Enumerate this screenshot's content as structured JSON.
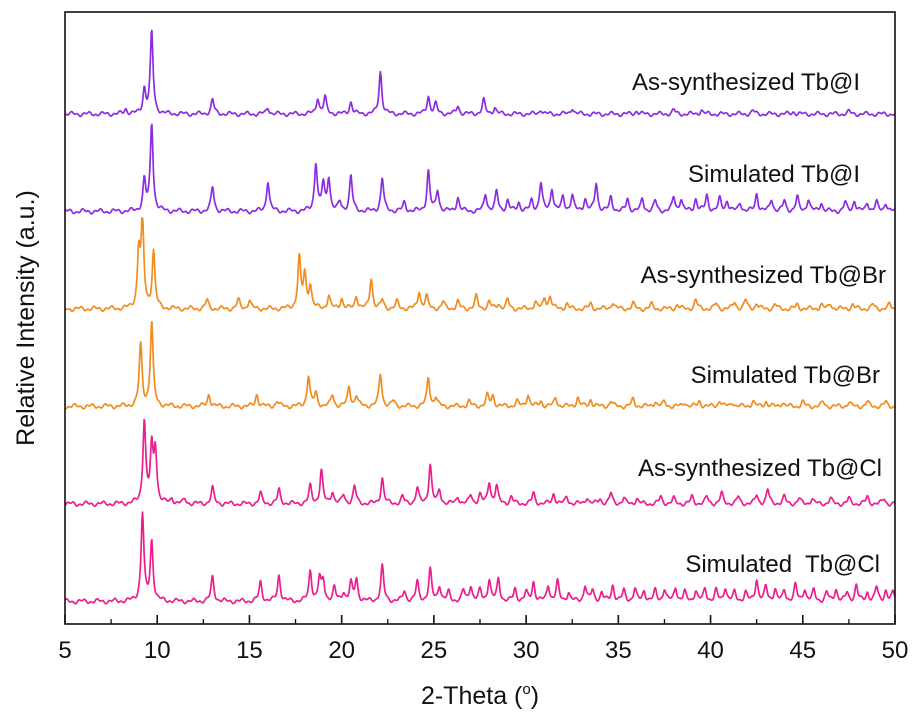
{
  "chart_data": {
    "type": "line",
    "title": "",
    "xlabel": "2-Theta",
    "xlabel_unit": "o",
    "ylabel": "Relative Intensity (a.u.)",
    "xlim": [
      5,
      50
    ],
    "x_ticks": [
      "5",
      "10",
      "15",
      "20",
      "25",
      "30",
      "35",
      "40",
      "45",
      "50"
    ],
    "y_ticks": "none",
    "grid": false,
    "legend": "inline labels",
    "colors": {
      "iodide": "#8B2BE2",
      "bromide": "#F28C1E",
      "chloride": "#EC1E8E",
      "axis": "#111111"
    },
    "series": [
      {
        "name": "As-synthesized Tb@I",
        "color": "iodide",
        "offset": 5,
        "scale": 0.82,
        "peaks": [
          [
            8.3,
            0.06
          ],
          [
            9.3,
            0.3
          ],
          [
            9.7,
            1.0
          ],
          [
            13.0,
            0.18
          ],
          [
            16.0,
            0.08
          ],
          [
            18.7,
            0.2
          ],
          [
            19.1,
            0.2
          ],
          [
            20.5,
            0.15
          ],
          [
            22.1,
            0.52
          ],
          [
            24.7,
            0.22
          ],
          [
            25.1,
            0.12
          ],
          [
            26.3,
            0.1
          ],
          [
            27.7,
            0.17
          ],
          [
            28.3,
            0.08
          ],
          [
            30.8,
            0.06
          ],
          [
            32.5,
            0.08
          ],
          [
            36.0,
            0.04
          ],
          [
            38.0,
            0.05
          ],
          [
            39.5,
            0.05
          ],
          [
            42.3,
            0.04
          ],
          [
            44.5,
            0.03
          ],
          [
            47.5,
            0.03
          ]
        ]
      },
      {
        "name": "Simulated Tb@I",
        "color": "iodide",
        "offset": 4,
        "scale": 0.88,
        "peaks": [
          [
            9.3,
            0.35
          ],
          [
            9.7,
            1.0
          ],
          [
            13.0,
            0.28
          ],
          [
            16.0,
            0.35
          ],
          [
            18.6,
            0.55
          ],
          [
            19.0,
            0.3
          ],
          [
            19.3,
            0.38
          ],
          [
            19.9,
            0.1
          ],
          [
            20.5,
            0.4
          ],
          [
            22.2,
            0.38
          ],
          [
            23.4,
            0.1
          ],
          [
            24.7,
            0.46
          ],
          [
            25.2,
            0.24
          ],
          [
            26.3,
            0.16
          ],
          [
            27.8,
            0.2
          ],
          [
            28.4,
            0.22
          ],
          [
            29.0,
            0.12
          ],
          [
            29.6,
            0.1
          ],
          [
            30.3,
            0.12
          ],
          [
            30.8,
            0.32
          ],
          [
            31.4,
            0.26
          ],
          [
            32.0,
            0.16
          ],
          [
            32.5,
            0.18
          ],
          [
            33.2,
            0.14
          ],
          [
            33.8,
            0.32
          ],
          [
            34.6,
            0.16
          ],
          [
            35.5,
            0.14
          ],
          [
            36.3,
            0.14
          ],
          [
            37.0,
            0.12
          ],
          [
            38.0,
            0.16
          ],
          [
            38.4,
            0.14
          ],
          [
            39.2,
            0.14
          ],
          [
            39.8,
            0.18
          ],
          [
            40.5,
            0.14
          ],
          [
            40.9,
            0.12
          ],
          [
            41.6,
            0.1
          ],
          [
            42.5,
            0.2
          ],
          [
            43.3,
            0.14
          ],
          [
            44.0,
            0.12
          ],
          [
            44.7,
            0.16
          ],
          [
            45.3,
            0.14
          ],
          [
            46.0,
            0.1
          ],
          [
            47.3,
            0.1
          ],
          [
            47.8,
            0.12
          ],
          [
            48.5,
            0.1
          ],
          [
            49.0,
            0.1
          ],
          [
            49.5,
            0.1
          ]
        ]
      },
      {
        "name": "As-synthesized Tb@Br",
        "color": "bromide",
        "offset": 3,
        "scale": 0.88,
        "peaks": [
          [
            9.0,
            0.62
          ],
          [
            9.2,
            0.95
          ],
          [
            9.8,
            0.65
          ],
          [
            12.7,
            0.1
          ],
          [
            14.4,
            0.1
          ],
          [
            15.0,
            0.1
          ],
          [
            17.7,
            0.58
          ],
          [
            18.0,
            0.38
          ],
          [
            18.3,
            0.26
          ],
          [
            19.3,
            0.15
          ],
          [
            20.0,
            0.12
          ],
          [
            20.8,
            0.15
          ],
          [
            21.6,
            0.35
          ],
          [
            22.2,
            0.1
          ],
          [
            23.0,
            0.08
          ],
          [
            24.2,
            0.2
          ],
          [
            24.6,
            0.14
          ],
          [
            25.5,
            0.08
          ],
          [
            26.3,
            0.08
          ],
          [
            27.3,
            0.14
          ],
          [
            28.0,
            0.08
          ],
          [
            28.5,
            0.06
          ],
          [
            29.0,
            0.1
          ],
          [
            30.5,
            0.08
          ],
          [
            31.0,
            0.12
          ],
          [
            31.3,
            0.14
          ],
          [
            32.2,
            0.06
          ],
          [
            33.5,
            0.06
          ],
          [
            34.7,
            0.08
          ],
          [
            35.8,
            0.06
          ],
          [
            36.8,
            0.05
          ],
          [
            38.2,
            0.05
          ],
          [
            39.2,
            0.1
          ],
          [
            40.3,
            0.06
          ],
          [
            41.3,
            0.08
          ],
          [
            41.9,
            0.1
          ],
          [
            42.5,
            0.06
          ],
          [
            43.5,
            0.05
          ],
          [
            44.7,
            0.05
          ],
          [
            46.0,
            0.05
          ],
          [
            46.5,
            0.06
          ],
          [
            47.7,
            0.05
          ],
          [
            48.8,
            0.05
          ],
          [
            49.7,
            0.05
          ]
        ]
      },
      {
        "name": "Simulated Tb@Br",
        "color": "bromide",
        "offset": 2,
        "scale": 0.88,
        "peaks": [
          [
            9.1,
            0.7
          ],
          [
            9.7,
            0.95
          ],
          [
            12.8,
            0.14
          ],
          [
            15.4,
            0.14
          ],
          [
            16.5,
            0.06
          ],
          [
            18.2,
            0.35
          ],
          [
            18.6,
            0.15
          ],
          [
            19.5,
            0.13
          ],
          [
            20.4,
            0.22
          ],
          [
            20.8,
            0.12
          ],
          [
            22.1,
            0.37
          ],
          [
            22.8,
            0.06
          ],
          [
            24.7,
            0.33
          ],
          [
            25.1,
            0.1
          ],
          [
            26.9,
            0.06
          ],
          [
            27.9,
            0.12
          ],
          [
            28.2,
            0.12
          ],
          [
            29.5,
            0.06
          ],
          [
            30.1,
            0.14
          ],
          [
            30.8,
            0.06
          ],
          [
            31.6,
            0.1
          ],
          [
            32.8,
            0.1
          ],
          [
            33.5,
            0.08
          ],
          [
            34.6,
            0.06
          ],
          [
            35.8,
            0.08
          ],
          [
            37.0,
            0.06
          ],
          [
            37.5,
            0.05
          ],
          [
            38.6,
            0.05
          ],
          [
            39.4,
            0.06
          ],
          [
            40.5,
            0.07
          ],
          [
            41.2,
            0.05
          ],
          [
            42.3,
            0.06
          ],
          [
            43.0,
            0.06
          ],
          [
            43.9,
            0.05
          ],
          [
            45.0,
            0.05
          ],
          [
            46.1,
            0.05
          ],
          [
            47.5,
            0.05
          ],
          [
            48.5,
            0.05
          ],
          [
            49.5,
            0.05
          ]
        ]
      },
      {
        "name": "As-synthesized Tb@Cl",
        "color": "chloride",
        "offset": 1,
        "scale": 0.88,
        "peaks": [
          [
            9.3,
            0.95
          ],
          [
            9.7,
            0.6
          ],
          [
            9.9,
            0.6
          ],
          [
            10.8,
            0.06
          ],
          [
            11.5,
            0.05
          ],
          [
            13.0,
            0.18
          ],
          [
            15.6,
            0.12
          ],
          [
            16.6,
            0.16
          ],
          [
            18.3,
            0.2
          ],
          [
            18.9,
            0.38
          ],
          [
            19.5,
            0.14
          ],
          [
            20.1,
            0.1
          ],
          [
            20.7,
            0.2
          ],
          [
            22.2,
            0.3
          ],
          [
            23.3,
            0.08
          ],
          [
            24.1,
            0.18
          ],
          [
            24.8,
            0.45
          ],
          [
            25.3,
            0.15
          ],
          [
            26.3,
            0.08
          ],
          [
            27.0,
            0.1
          ],
          [
            27.5,
            0.1
          ],
          [
            28.0,
            0.25
          ],
          [
            28.4,
            0.2
          ],
          [
            29.2,
            0.08
          ],
          [
            30.4,
            0.12
          ],
          [
            31.5,
            0.12
          ],
          [
            32.2,
            0.08
          ],
          [
            33.3,
            0.08
          ],
          [
            34.0,
            0.06
          ],
          [
            34.6,
            0.12
          ],
          [
            35.3,
            0.06
          ],
          [
            36.0,
            0.06
          ],
          [
            37.3,
            0.08
          ],
          [
            38.0,
            0.06
          ],
          [
            39.0,
            0.08
          ],
          [
            39.8,
            0.08
          ],
          [
            40.6,
            0.12
          ],
          [
            41.5,
            0.08
          ],
          [
            42.5,
            0.1
          ],
          [
            43.1,
            0.16
          ],
          [
            44.0,
            0.08
          ],
          [
            44.8,
            0.06
          ],
          [
            45.5,
            0.06
          ],
          [
            46.5,
            0.06
          ],
          [
            47.5,
            0.06
          ],
          [
            48.5,
            0.08
          ],
          [
            49.4,
            0.06
          ]
        ]
      },
      {
        "name": "Simulated  Tb@Cl",
        "color": "chloride",
        "offset": 0,
        "scale": 0.88,
        "peaks": [
          [
            9.2,
            1.0
          ],
          [
            9.7,
            0.68
          ],
          [
            13.0,
            0.28
          ],
          [
            15.6,
            0.22
          ],
          [
            16.6,
            0.3
          ],
          [
            18.3,
            0.35
          ],
          [
            18.8,
            0.25
          ],
          [
            19.0,
            0.22
          ],
          [
            19.6,
            0.15
          ],
          [
            20.1,
            0.1
          ],
          [
            20.5,
            0.2
          ],
          [
            20.8,
            0.25
          ],
          [
            22.2,
            0.4
          ],
          [
            23.4,
            0.12
          ],
          [
            24.1,
            0.22
          ],
          [
            24.8,
            0.35
          ],
          [
            25.3,
            0.18
          ],
          [
            25.8,
            0.1
          ],
          [
            26.6,
            0.12
          ],
          [
            27.0,
            0.18
          ],
          [
            27.5,
            0.12
          ],
          [
            28.0,
            0.25
          ],
          [
            28.5,
            0.25
          ],
          [
            29.4,
            0.14
          ],
          [
            30.0,
            0.1
          ],
          [
            30.4,
            0.22
          ],
          [
            31.2,
            0.18
          ],
          [
            31.7,
            0.22
          ],
          [
            32.3,
            0.1
          ],
          [
            33.2,
            0.18
          ],
          [
            33.6,
            0.12
          ],
          [
            34.1,
            0.1
          ],
          [
            34.7,
            0.18
          ],
          [
            35.3,
            0.12
          ],
          [
            35.9,
            0.14
          ],
          [
            36.4,
            0.12
          ],
          [
            37.0,
            0.12
          ],
          [
            37.5,
            0.14
          ],
          [
            38.1,
            0.16
          ],
          [
            38.6,
            0.1
          ],
          [
            39.2,
            0.12
          ],
          [
            39.7,
            0.14
          ],
          [
            40.3,
            0.12
          ],
          [
            40.8,
            0.16
          ],
          [
            41.3,
            0.1
          ],
          [
            41.9,
            0.1
          ],
          [
            42.5,
            0.25
          ],
          [
            43.0,
            0.16
          ],
          [
            43.5,
            0.14
          ],
          [
            44.0,
            0.12
          ],
          [
            44.6,
            0.18
          ],
          [
            45.1,
            0.14
          ],
          [
            45.6,
            0.12
          ],
          [
            46.3,
            0.1
          ],
          [
            46.8,
            0.14
          ],
          [
            47.4,
            0.1
          ],
          [
            47.9,
            0.18
          ],
          [
            48.5,
            0.1
          ],
          [
            49.0,
            0.16
          ],
          [
            49.5,
            0.12
          ],
          [
            49.9,
            0.1
          ]
        ]
      }
    ]
  }
}
